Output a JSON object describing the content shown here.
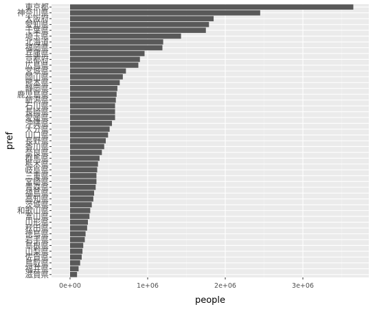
{
  "chart_data": {
    "type": "bar",
    "orientation": "horizontal",
    "xlabel": "people",
    "ylabel": "pref",
    "xlim": [
      0,
      3800000
    ],
    "x_ticks": [
      0,
      1000000,
      2000000,
      3000000
    ],
    "x_tick_labels": [
      "0e+00",
      "1e+06",
      "2e+06",
      "3e+06"
    ],
    "grid": true,
    "colors": {
      "bar": "#595959",
      "panel": "#ebebeb",
      "grid_major": "#ffffff",
      "grid_minor": "#f4f4f4"
    },
    "categories": [
      "東京都",
      "神奈川県",
      "大阪府",
      "愛知県",
      "千葉県",
      "埼玉県",
      "北海道",
      "福岡県",
      "兵庫県",
      "京都府",
      "広島県",
      "宮城県",
      "岡山県",
      "熊本県",
      "静岡県",
      "鹿児島県",
      "新潟県",
      "石川県",
      "長崎県",
      "愛媛県",
      "沖縄県",
      "大分県",
      "山口県",
      "長野県",
      "香川県",
      "奈良県",
      "群馬県",
      "栃木県",
      "岐阜県",
      "三重県",
      "宮崎県",
      "青森県",
      "福島県",
      "高知県",
      "茨城県",
      "和歌山県",
      "富山県",
      "山形県",
      "秋田県",
      "徳島県",
      "岩手県",
      "島根県",
      "山梨県",
      "佐賀県",
      "鳥取県",
      "福井県",
      "滋賀県"
    ],
    "values": [
      3650000,
      2450000,
      1850000,
      1790000,
      1750000,
      1430000,
      1200000,
      1190000,
      960000,
      900000,
      880000,
      720000,
      680000,
      640000,
      610000,
      600000,
      590000,
      580000,
      580000,
      580000,
      540000,
      510000,
      490000,
      460000,
      440000,
      410000,
      380000,
      360000,
      350000,
      340000,
      340000,
      330000,
      310000,
      300000,
      280000,
      260000,
      250000,
      230000,
      220000,
      200000,
      190000,
      170000,
      160000,
      150000,
      130000,
      110000,
      90000
    ]
  }
}
